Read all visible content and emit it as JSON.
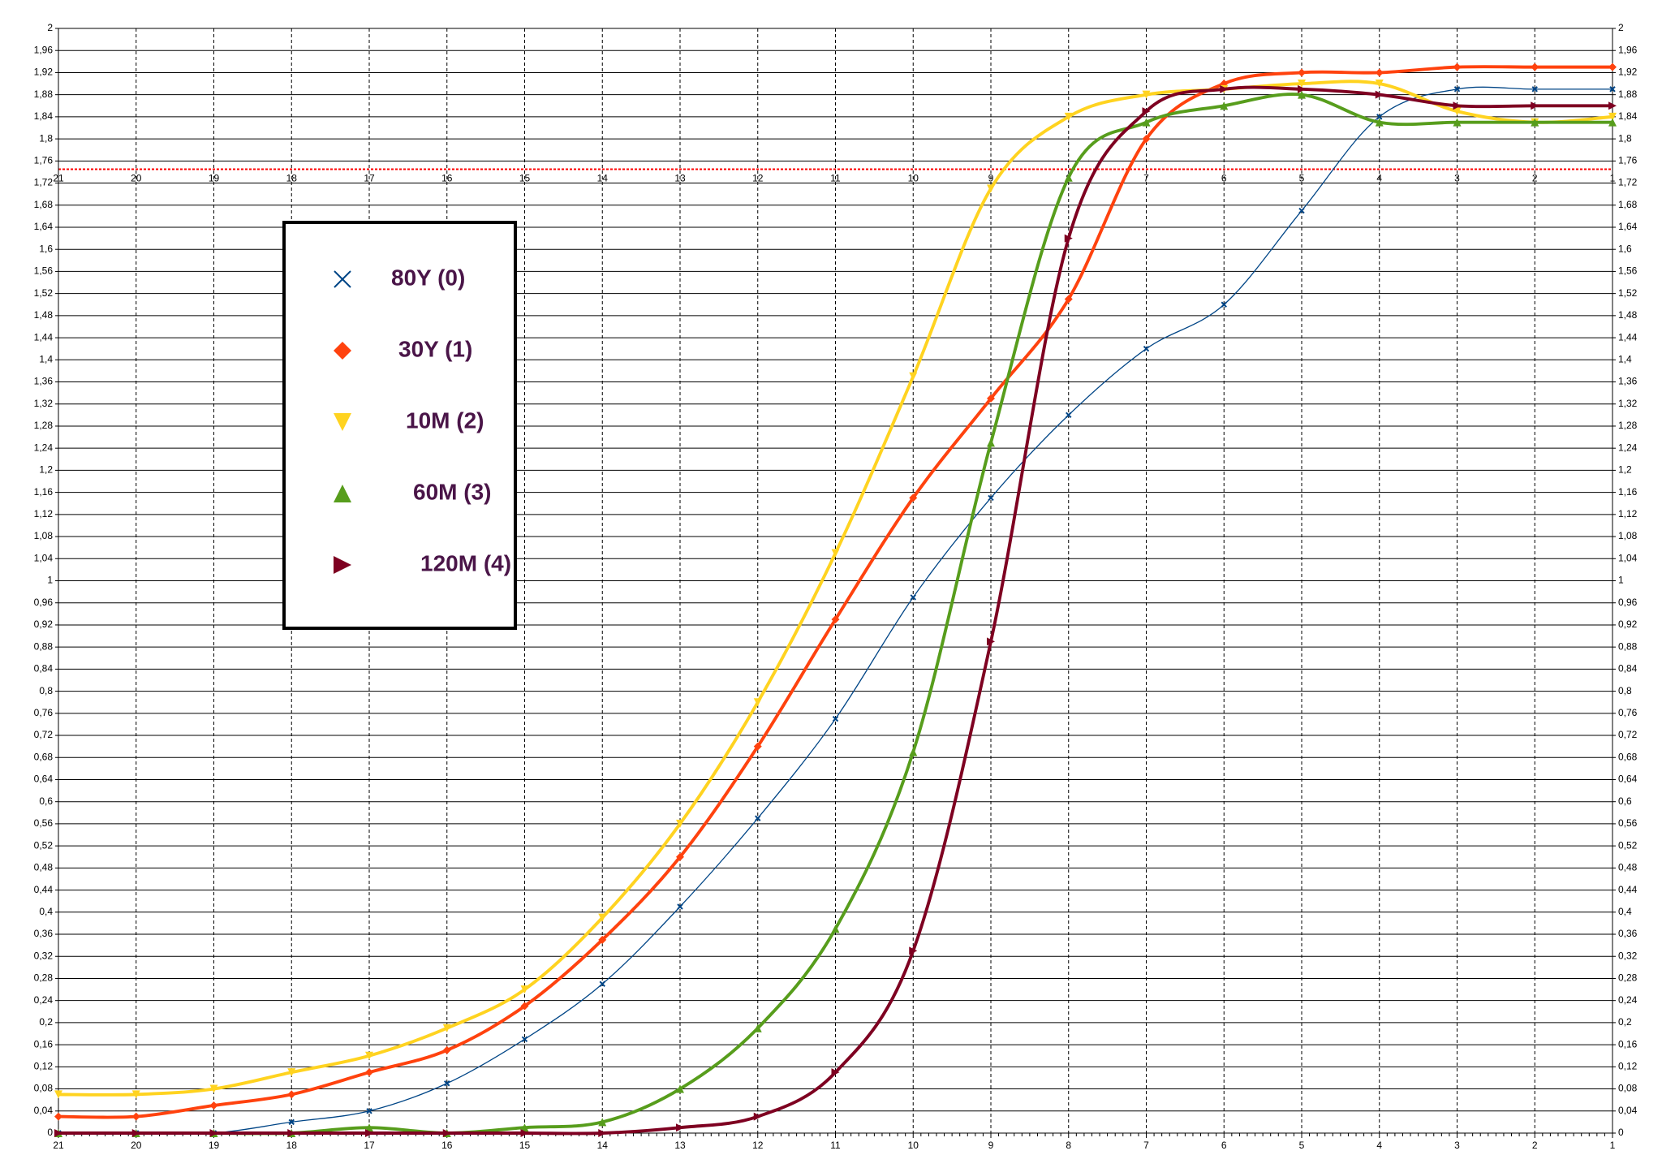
{
  "chart_data": {
    "type": "line",
    "x": [
      21,
      20,
      19,
      18,
      17,
      16,
      15,
      14,
      13,
      12,
      11,
      10,
      9,
      8,
      7,
      6,
      5,
      4,
      3,
      2,
      1
    ],
    "xlim": [
      21,
      1
    ],
    "xticks": [
      21,
      20,
      19,
      18,
      17,
      16,
      15,
      14,
      13,
      12,
      11,
      10,
      9,
      8,
      7,
      6,
      5,
      4,
      3,
      2,
      1
    ],
    "ylim": [
      0,
      2
    ],
    "yticks": [
      0,
      {
        "value": 0.04,
        "label": "0,04"
      },
      {
        "value": 0.08,
        "label": "0,08"
      },
      {
        "value": 0.12,
        "label": "0,12"
      },
      {
        "value": 0.16,
        "label": "0,16"
      },
      {
        "value": 0.2,
        "label": "0,2"
      },
      {
        "value": 0.24,
        "label": "0,24"
      },
      {
        "value": 0.28,
        "label": "0,28"
      },
      {
        "value": 0.32,
        "label": "0,32"
      },
      {
        "value": 0.36,
        "label": "0,36"
      },
      {
        "value": 0.4,
        "label": "0,4"
      },
      {
        "value": 0.44,
        "label": "0,44"
      },
      {
        "value": 0.48,
        "label": "0,48"
      },
      {
        "value": 0.52,
        "label": "0,52"
      },
      {
        "value": 0.56,
        "label": "0,56"
      },
      {
        "value": 0.6,
        "label": "0,6"
      },
      {
        "value": 0.64,
        "label": "0,64"
      },
      {
        "value": 0.68,
        "label": "0,68"
      },
      {
        "value": 0.72,
        "label": "0,72"
      },
      {
        "value": 0.76,
        "label": "0,76"
      },
      {
        "value": 0.8,
        "label": "0,8"
      },
      {
        "value": 0.84,
        "label": "0,84"
      },
      {
        "value": 0.88,
        "label": "0,88"
      },
      {
        "value": 0.92,
        "label": "0,92"
      },
      {
        "value": 0.96,
        "label": "0,96"
      },
      1,
      {
        "value": 1.04,
        "label": "1,04"
      },
      {
        "value": 1.08,
        "label": "1,08"
      },
      {
        "value": 1.12,
        "label": "1,12"
      },
      {
        "value": 1.16,
        "label": "1,16"
      },
      {
        "value": 1.2,
        "label": "1,2"
      },
      {
        "value": 1.24,
        "label": "1,24"
      },
      {
        "value": 1.28,
        "label": "1,28"
      },
      {
        "value": 1.32,
        "label": "1,32"
      },
      {
        "value": 1.36,
        "label": "1,36"
      },
      {
        "value": 1.4,
        "label": "1,4"
      },
      {
        "value": 1.44,
        "label": "1,44"
      },
      {
        "value": 1.48,
        "label": "1,48"
      },
      {
        "value": 1.52,
        "label": "1,52"
      },
      {
        "value": 1.56,
        "label": "1,56"
      },
      {
        "value": 1.6,
        "label": "1,6"
      },
      {
        "value": 1.64,
        "label": "1,64"
      },
      {
        "value": 1.68,
        "label": "1,68"
      },
      {
        "value": 1.72,
        "label": "1,72"
      },
      {
        "value": 1.76,
        "label": "1,76"
      },
      {
        "value": 1.8,
        "label": "1,8"
      },
      {
        "value": 1.84,
        "label": "1,84"
      },
      {
        "value": 1.88,
        "label": "1,88"
      },
      {
        "value": 1.92,
        "label": "1,92"
      },
      {
        "value": 1.96,
        "label": "1,96"
      },
      2
    ],
    "grid": true,
    "reference_line": {
      "value": 1.745,
      "color": "#ff0000"
    },
    "series": [
      {
        "name": "80Y (0)",
        "color": "#004586",
        "marker": "x",
        "width": 1,
        "values": [
          0,
          0,
          0,
          0.02,
          0.04,
          0.09,
          0.17,
          0.27,
          0.41,
          0.57,
          0.75,
          0.97,
          1.15,
          1.3,
          1.42,
          1.5,
          1.67,
          1.84,
          1.89,
          1.89,
          1.89
        ]
      },
      {
        "name": "30Y (1)",
        "color": "#ff420e",
        "marker": "diamond",
        "width": 3,
        "values": [
          0.03,
          0.03,
          0.05,
          0.07,
          0.11,
          0.15,
          0.23,
          0.35,
          0.5,
          0.7,
          0.93,
          1.15,
          1.33,
          1.51,
          1.8,
          1.9,
          1.92,
          1.92,
          1.93,
          1.93,
          1.93
        ]
      },
      {
        "name": "10M (2)",
        "color": "#ffd320",
        "marker": "triangle-down",
        "width": 3,
        "values": [
          0.07,
          0.07,
          0.08,
          0.11,
          0.14,
          0.19,
          0.26,
          0.39,
          0.56,
          0.78,
          1.05,
          1.37,
          1.71,
          1.84,
          1.88,
          1.89,
          1.9,
          1.9,
          1.85,
          1.83,
          1.84
        ]
      },
      {
        "name": "60M (3)",
        "color": "#579d1c",
        "marker": "triangle-up",
        "width": 3,
        "values": [
          0,
          0,
          0,
          0,
          0.01,
          0,
          0.01,
          0.02,
          0.08,
          0.19,
          0.37,
          0.69,
          1.25,
          1.73,
          1.83,
          1.86,
          1.88,
          1.83,
          1.83,
          1.83,
          1.83
        ]
      },
      {
        "name": "120M (4)",
        "color": "#7e0021",
        "marker": "triangle-right",
        "width": 3,
        "values": [
          0,
          0,
          0,
          0,
          0,
          0,
          0,
          0,
          0.01,
          0.03,
          0.11,
          0.33,
          0.89,
          1.62,
          1.85,
          1.89,
          1.89,
          1.88,
          1.86,
          1.86,
          1.86
        ]
      }
    ]
  }
}
